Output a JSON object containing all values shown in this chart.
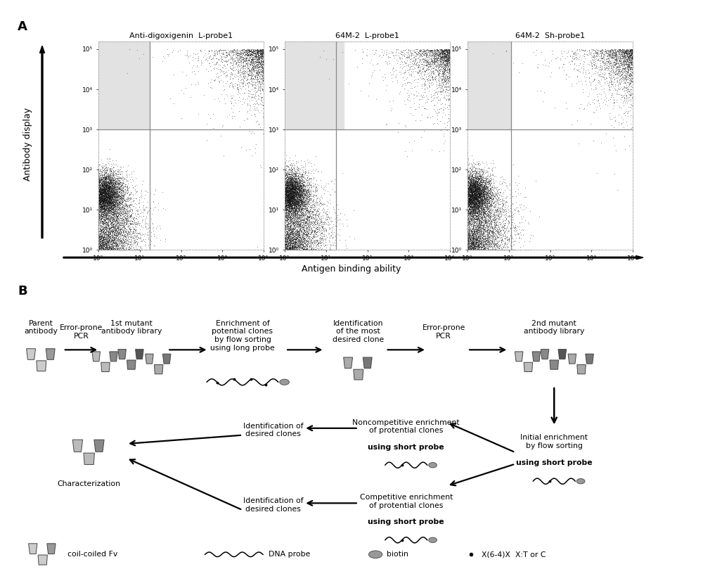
{
  "panel_A_label": "A",
  "panel_B_label": "B",
  "plot_titles": [
    "Anti-digoxigenin  L-probe1",
    "64M-2  L-probe1",
    "64M-2  Sh-probe1"
  ],
  "xlabel": "Antigen binding ability",
  "ylabel": "Antibody display",
  "bg_color": "#ffffff",
  "workflow_row1": [
    "Parent\nantibody",
    "Error-prone\nPCR",
    "1st mutant\nantibody library",
    "Enrichment of\npotential clones\nby flow sorting\nusing long probe",
    "Identification\nof the most\ndesired clone",
    "Error-prone\nPCR",
    "2nd mutant\nantibody library"
  ],
  "noncomp_text": "Noncompetitive enrichment\nof protential clones\nusing short probe",
  "comp_text": "Competitive enrichment\nof protential clones\nusing short probe",
  "init_enrich_text": "Initial enrichment\nby flow sorting\nusing short probe",
  "id_desired1": "Identification of\ndesired clones",
  "id_desired2": "Identification of\ndesired clones",
  "characterization": "Characterization",
  "legend_antibody": "coil-coiled Fv",
  "legend_dna": "DNA probe",
  "legend_biotin": "biotin",
  "legend_x64x": "X(6-4)X  X:T or C"
}
